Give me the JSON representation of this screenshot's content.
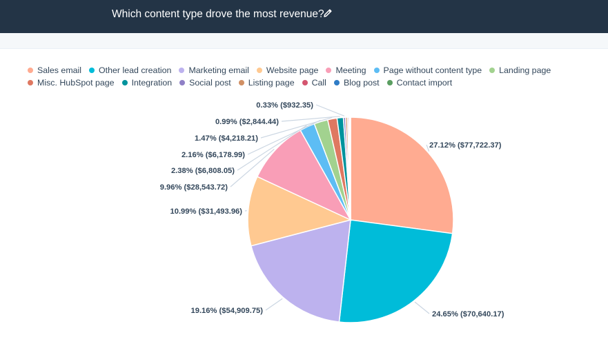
{
  "header": {
    "title": "Which content type drove the most revenue?",
    "edit_icon": "pencil-icon"
  },
  "colors": {
    "header_bg": "#233446",
    "text": "#33475b",
    "leader": "#cbd6e2"
  },
  "chart_data": {
    "type": "pie",
    "title": "",
    "legend_position": "top",
    "legend": [
      {
        "name": "Sales email",
        "color": "#ffab91"
      },
      {
        "name": "Other lead creation",
        "color": "#00bcd9"
      },
      {
        "name": "Marketing email",
        "color": "#bdb2ee"
      },
      {
        "name": "Website page",
        "color": "#ffc991"
      },
      {
        "name": "Meeting",
        "color": "#f99eb7"
      },
      {
        "name": "Page without content type",
        "color": "#5dbdf4"
      },
      {
        "name": "Landing page",
        "color": "#a2d28f"
      },
      {
        "name": "Misc. HubSpot page",
        "color": "#df7861"
      },
      {
        "name": "Integration",
        "color": "#00939d"
      },
      {
        "name": "Social post",
        "color": "#8f80c6"
      },
      {
        "name": "Listing page",
        "color": "#d19064"
      },
      {
        "name": "Call",
        "color": "#d4556f"
      },
      {
        "name": "Blog post",
        "color": "#2f7cc6"
      },
      {
        "name": "Contact import",
        "color": "#5a9e61"
      }
    ],
    "slices": [
      {
        "name": "Sales email",
        "percent": 27.12,
        "value": 77722.37,
        "label": "27.12% ($77,722.37)",
        "color": "#ffab91"
      },
      {
        "name": "Other lead creation",
        "percent": 24.65,
        "value": 70640.17,
        "label": "24.65% ($70,640.17)",
        "color": "#00bcd9"
      },
      {
        "name": "Marketing email",
        "percent": 19.16,
        "value": 54909.75,
        "label": "19.16% ($54,909.75)",
        "color": "#bdb2ee"
      },
      {
        "name": "Website page",
        "percent": 10.99,
        "value": 31493.96,
        "label": "10.99% ($31,493.96)",
        "color": "#ffc991"
      },
      {
        "name": "Meeting",
        "percent": 9.96,
        "value": 28543.72,
        "label": "9.96% ($28,543.72)",
        "color": "#f99eb7"
      },
      {
        "name": "Page without content type",
        "percent": 2.38,
        "value": 6808.05,
        "label": "2.38% ($6,808.05)",
        "color": "#5dbdf4"
      },
      {
        "name": "Landing page",
        "percent": 2.16,
        "value": 6178.99,
        "label": "2.16% ($6,178.99)",
        "color": "#a2d28f"
      },
      {
        "name": "Misc. HubSpot page",
        "percent": 1.47,
        "value": 4218.21,
        "label": "1.47% ($4,218.21)",
        "color": "#df7861"
      },
      {
        "name": "Integration",
        "percent": 0.99,
        "value": 2844.44,
        "label": "0.99% ($2,844.44)",
        "color": "#00939d"
      },
      {
        "name": "Social post",
        "percent": 0.33,
        "value": 932.35,
        "label": "0.33% ($932.35)",
        "color": "#8f80c6"
      },
      {
        "name": "Listing page",
        "percent": 0.3,
        "value": null,
        "label": "",
        "color": "#d19064"
      },
      {
        "name": "Call",
        "percent": 0.2,
        "value": null,
        "label": "",
        "color": "#d4556f"
      },
      {
        "name": "Blog post",
        "percent": 0.15,
        "value": null,
        "label": "",
        "color": "#2f7cc6"
      },
      {
        "name": "Contact import",
        "percent": 0.14,
        "value": null,
        "label": "",
        "color": "#5a9e61"
      }
    ]
  }
}
